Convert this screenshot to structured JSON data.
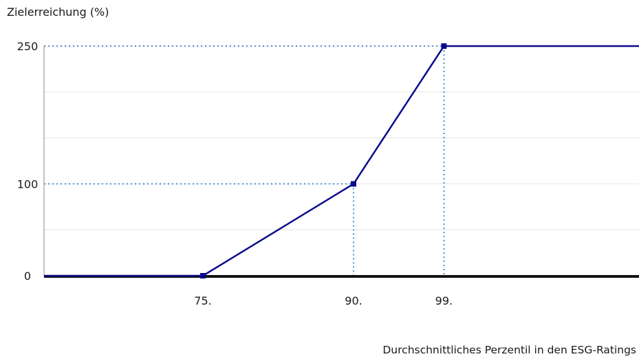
{
  "chart_data": {
    "type": "line",
    "ylabel": "Zielerreichung (%)",
    "xlabel": "Durchschnittliches Perzentil in den ESG-Ratings",
    "yticks": [
      0,
      100,
      250
    ],
    "xticks": [
      {
        "value": 75,
        "label": "75."
      },
      {
        "value": 90,
        "label": "90."
      },
      {
        "value": 99,
        "label": "99."
      }
    ],
    "ylim": [
      0,
      250
    ],
    "series": [
      {
        "color": "#0a0a8c",
        "x": [
          55,
          75,
          90,
          99,
          130
        ],
        "y": [
          0,
          0,
          100,
          250,
          250
        ]
      }
    ],
    "markers": [
      {
        "x": 75,
        "y": 0
      },
      {
        "x": 90,
        "y": 100
      },
      {
        "x": 99,
        "y": 250
      }
    ],
    "reference_color": "#4a90d9",
    "grid": true
  }
}
